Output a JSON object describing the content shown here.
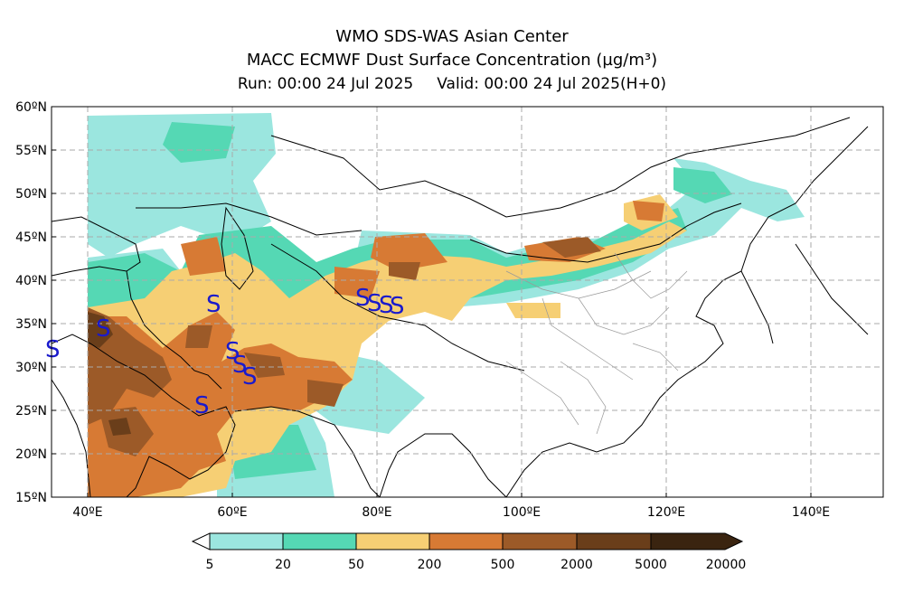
{
  "header": {
    "title": "WMO SDS-WAS Asian Center",
    "subtitle": "MACC ECMWF Dust Surface Concentration",
    "units": "(µg/m³)",
    "run_label": "Run: 00:00 24 Jul 2025",
    "valid_label": "Valid: 00:00 24 Jul 2025(H+0)"
  },
  "map": {
    "lat_labels": [
      "60ºN",
      "55ºN",
      "50ºN",
      "45ºN",
      "40ºN",
      "35ºN",
      "30ºN",
      "25ºN",
      "20ºN",
      "15ºN"
    ],
    "lon_labels": [
      "40ºE",
      "60ºE",
      "80ºE",
      "100ºE",
      "120ºE",
      "140ºE"
    ],
    "station_marker": "S",
    "marker_color": "#1a1acc"
  },
  "colorbar": {
    "levels": [
      "5",
      "20",
      "50",
      "200",
      "500",
      "2000",
      "5000",
      "20000"
    ],
    "colors": [
      "#9be6df",
      "#55d8b4",
      "#f6cf74",
      "#d77a34",
      "#9c5a28",
      "#6a3e1a",
      "#3a2410"
    ]
  }
}
